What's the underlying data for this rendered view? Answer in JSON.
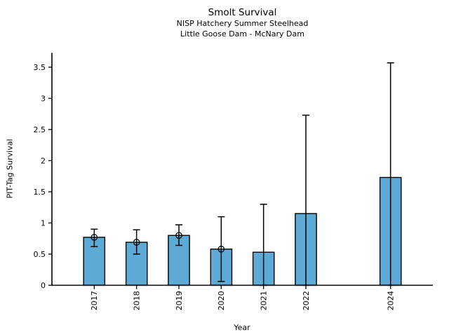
{
  "chart_data": {
    "type": "bar",
    "title": "Smolt Survival",
    "subtitle1": "NISP Hatchery Summer Steelhead",
    "subtitle2": "Little Goose Dam - McNary Dam",
    "xlabel": "Year",
    "ylabel": "PIT-Tag Survival",
    "categories": [
      "2017",
      "2018",
      "2019",
      "2020",
      "2021",
      "2022",
      "2024"
    ],
    "x_positions": [
      2017,
      2018,
      2019,
      2020,
      2021,
      2022,
      2024
    ],
    "values": [
      0.77,
      0.69,
      0.8,
      0.58,
      0.53,
      1.15,
      1.73
    ],
    "error_low": [
      0.62,
      0.5,
      0.64,
      0.06,
      0,
      0,
      0
    ],
    "error_high": [
      0.9,
      0.89,
      0.97,
      1.1,
      1.3,
      2.73,
      3.57
    ],
    "point_marker_on_top": [
      true,
      true,
      true,
      true,
      false,
      false,
      false
    ],
    "yticks": [
      "0",
      "0.5",
      "1",
      "1.5",
      "2",
      "2.5",
      "3",
      "3.5"
    ],
    "ylim": [
      0,
      3.73
    ],
    "xlim": [
      2016,
      2025
    ],
    "bar_width_years": 0.5,
    "grid": false,
    "legend": null,
    "colors": {
      "bar_fill": "#5CAAD5",
      "bar_edge": "#000000",
      "error_bar": "#000000",
      "axis": "#000000",
      "text": "#000000",
      "background": "#ffffff"
    }
  }
}
